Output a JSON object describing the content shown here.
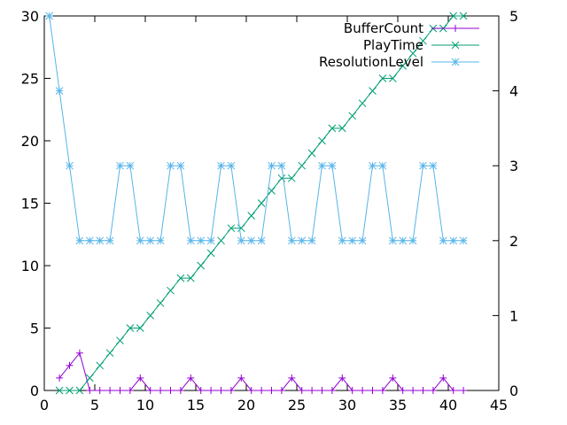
{
  "chart_data": {
    "type": "line",
    "x_axis": {
      "range": [
        0,
        45
      ],
      "ticks": [
        0,
        5,
        10,
        15,
        20,
        25,
        30,
        35,
        40,
        45
      ]
    },
    "y_axis_left": {
      "range": [
        0,
        30
      ],
      "ticks": [
        0,
        5,
        10,
        15,
        20,
        25,
        30
      ]
    },
    "y_axis_right": {
      "range": [
        0,
        5
      ],
      "ticks": [
        0,
        1,
        2,
        3,
        4,
        5
      ]
    },
    "grid": false,
    "legend_position": "top-right",
    "series": [
      {
        "name": "BufferCount",
        "axis": "left",
        "color": "#9400d3",
        "marker": "plus",
        "x": [
          1.5,
          2.5,
          3.5,
          4.5,
          5.5,
          6.5,
          7.5,
          8.5,
          9.5,
          10.5,
          11.5,
          12.5,
          13.5,
          14.5,
          15.5,
          16.5,
          17.5,
          18.5,
          19.5,
          20.5,
          21.5,
          22.5,
          23.5,
          24.5,
          25.5,
          26.5,
          27.5,
          28.5,
          29.5,
          30.5,
          31.5,
          32.5,
          33.5,
          34.5,
          35.5,
          36.5,
          37.5,
          38.5,
          39.5,
          40.5,
          41.5
        ],
        "y": [
          1,
          2,
          3,
          0,
          0,
          0,
          0,
          0,
          1,
          0,
          0,
          0,
          0,
          1,
          0,
          0,
          0,
          0,
          1,
          0,
          0,
          0,
          0,
          1,
          0,
          0,
          0,
          0,
          1,
          0,
          0,
          0,
          0,
          1,
          0,
          0,
          0,
          0,
          1,
          0,
          0
        ]
      },
      {
        "name": "PlayTime",
        "axis": "left",
        "color": "#009e73",
        "marker": "cross",
        "x": [
          1.5,
          2.5,
          3.5,
          4.5,
          5.5,
          6.5,
          7.5,
          8.5,
          9.5,
          10.5,
          11.5,
          12.5,
          13.5,
          14.5,
          15.5,
          16.5,
          17.5,
          18.5,
          19.5,
          20.5,
          21.5,
          22.5,
          23.5,
          24.5,
          25.5,
          26.5,
          27.5,
          28.5,
          29.5,
          30.5,
          31.5,
          32.5,
          33.5,
          34.5,
          35.5,
          36.5,
          37.5,
          38.5,
          39.5,
          40.5,
          41.5
        ],
        "y": [
          0,
          0,
          0,
          1,
          2,
          3,
          4,
          5,
          5,
          6,
          7,
          8,
          9,
          9,
          10,
          11,
          12,
          13,
          13,
          14,
          15,
          16,
          17,
          17,
          18,
          19,
          20,
          21,
          21,
          22,
          23,
          24,
          25,
          25,
          26,
          27,
          28,
          29,
          29,
          30,
          30
        ]
      },
      {
        "name": "ResolutionLevel",
        "axis": "right",
        "color": "#56b4e9",
        "marker": "star",
        "x": [
          0.5,
          1.5,
          2.5,
          3.5,
          4.5,
          5.5,
          6.5,
          7.5,
          8.5,
          9.5,
          10.5,
          11.5,
          12.5,
          13.5,
          14.5,
          15.5,
          16.5,
          17.5,
          18.5,
          19.5,
          20.5,
          21.5,
          22.5,
          23.5,
          24.5,
          25.5,
          26.5,
          27.5,
          28.5,
          29.5,
          30.5,
          31.5,
          32.5,
          33.5,
          34.5,
          35.5,
          36.5,
          37.5,
          38.5,
          39.5,
          40.5,
          41.5
        ],
        "y": [
          5,
          4,
          3,
          2,
          2,
          2,
          2,
          3,
          3,
          2,
          2,
          2,
          3,
          3,
          2,
          2,
          2,
          3,
          3,
          2,
          2,
          2,
          3,
          3,
          2,
          2,
          2,
          3,
          3,
          2,
          2,
          2,
          3,
          3,
          2,
          2,
          2,
          3,
          3,
          2,
          2,
          2
        ]
      }
    ]
  }
}
